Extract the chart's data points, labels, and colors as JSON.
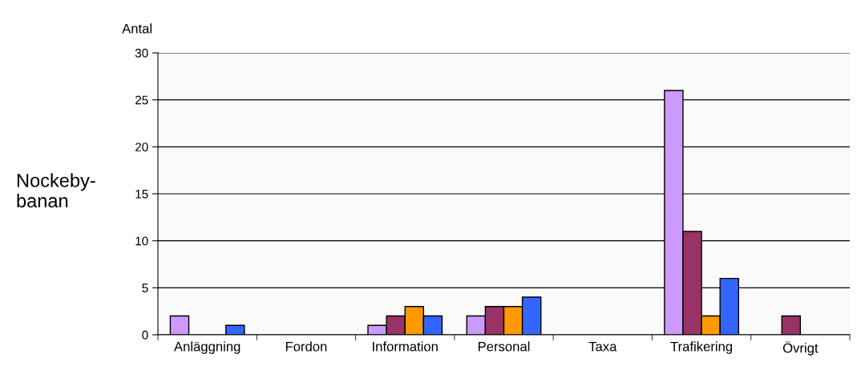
{
  "chart_data": {
    "type": "bar",
    "ylabel": "Antal",
    "annotations": [
      "Nockeby-\nbanan"
    ],
    "categories": [
      "Anläggning",
      "Fordon",
      "Information",
      "Personal",
      "Taxa",
      "Trafikering",
      "Övrigt"
    ],
    "series": [
      {
        "color": "#cc99ff",
        "values": [
          2,
          0,
          1,
          2,
          0,
          26,
          0
        ]
      },
      {
        "color": "#993366",
        "values": [
          0,
          0,
          2,
          3,
          0,
          11,
          2
        ]
      },
      {
        "color": "#ff9900",
        "values": [
          0,
          0,
          3,
          3,
          0,
          2,
          0
        ]
      },
      {
        "color": "#3366ff",
        "values": [
          1,
          0,
          2,
          4,
          0,
          6,
          0
        ]
      }
    ],
    "ylim": [
      0,
      30
    ],
    "yticks": [
      0,
      5,
      10,
      15,
      20,
      25,
      30
    ],
    "grid": "y",
    "legend": false
  }
}
